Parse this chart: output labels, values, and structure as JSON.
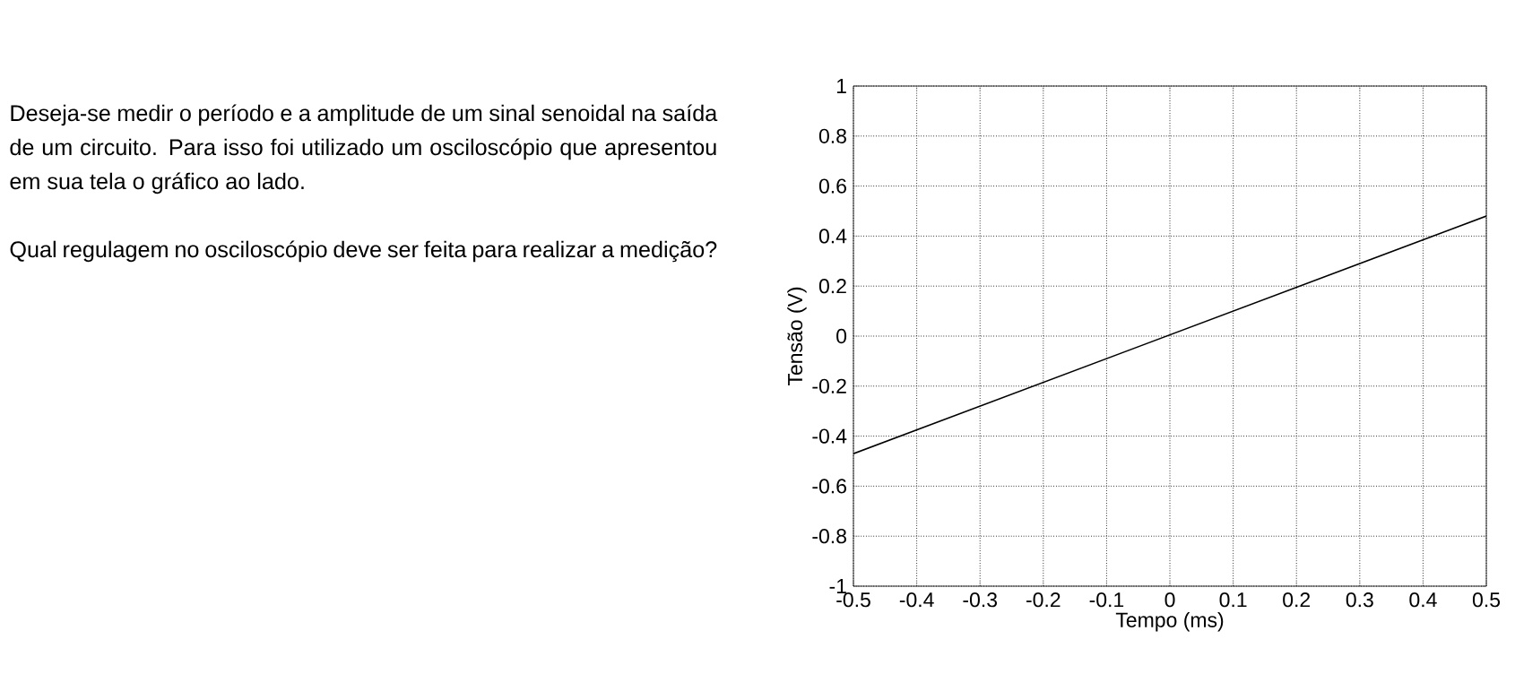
{
  "chart_data": {
    "type": "line",
    "xlabel": "Tempo (ms)",
    "ylabel": "Tensão (V)",
    "annotations": [
      "Deseja-se medir o período e a amplitude de um sinal senoidal na saída de um circuito. Para isso foi utilizado um osciloscópio que apresentou em sua tela o gráfico ao lado.",
      "Qual regulagem no osciloscópio deve ser feita para realizar a medição?"
    ],
    "x": [
      -0.5,
      0.5
    ],
    "series": [
      {
        "color": "#000000",
        "values": [
          -0.47,
          0.48
        ]
      }
    ],
    "xlim": [
      -0.5,
      0.5
    ],
    "ylim": [
      -1,
      1
    ],
    "xticks": [
      -0.5,
      -0.4,
      -0.3,
      -0.2,
      -0.1,
      0,
      0.1,
      0.2,
      0.3,
      0.4,
      0.5
    ],
    "yticks": [
      -1,
      -0.8,
      -0.6,
      -0.4,
      -0.2,
      0,
      0.2,
      0.4,
      0.6,
      0.8,
      1
    ],
    "grid": true,
    "marker": "none",
    "line_style": "solid"
  }
}
